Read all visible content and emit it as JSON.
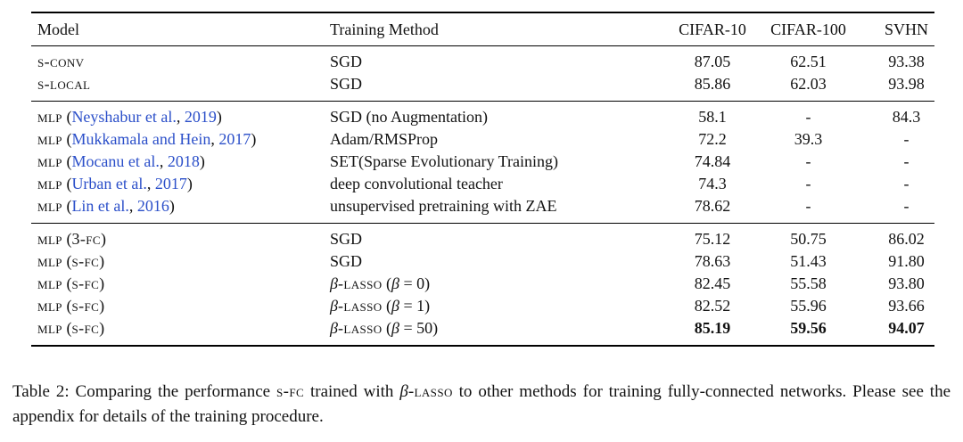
{
  "colors": {
    "link": "#2b4fc9",
    "text": "#121212",
    "rule": "#000000"
  },
  "table": {
    "headers": [
      "Model",
      "Training Method",
      "CIFAR-10",
      "CIFAR-100",
      "SVHN"
    ],
    "sections": [
      {
        "rows": [
          {
            "model": [
              {
                "t": "s-conv",
                "sc": true
              }
            ],
            "method": [
              {
                "t": "SGD"
              }
            ],
            "values": [
              {
                "v": "87.05"
              },
              {
                "v": "62.51"
              },
              {
                "v": "93.38"
              }
            ]
          },
          {
            "model": [
              {
                "t": "s-local",
                "sc": true
              }
            ],
            "method": [
              {
                "t": "SGD"
              }
            ],
            "values": [
              {
                "v": "85.86"
              },
              {
                "v": "62.03"
              },
              {
                "v": "93.98"
              }
            ]
          }
        ]
      },
      {
        "rows": [
          {
            "model": [
              {
                "t": "mlp",
                "sc": true
              },
              {
                "t": " ("
              },
              {
                "t": "Neyshabur et al.",
                "link": true
              },
              {
                "t": ", "
              },
              {
                "t": "2019",
                "link": true
              },
              {
                "t": ")"
              }
            ],
            "method": [
              {
                "t": "SGD (no Augmentation)"
              }
            ],
            "values": [
              {
                "v": "58.1"
              },
              {
                "v": "-"
              },
              {
                "v": "84.3"
              }
            ]
          },
          {
            "model": [
              {
                "t": "mlp",
                "sc": true
              },
              {
                "t": " ("
              },
              {
                "t": "Mukkamala and Hein",
                "link": true
              },
              {
                "t": ", "
              },
              {
                "t": "2017",
                "link": true
              },
              {
                "t": ")"
              }
            ],
            "method": [
              {
                "t": "Adam/RMSProp"
              }
            ],
            "values": [
              {
                "v": "72.2"
              },
              {
                "v": "39.3"
              },
              {
                "v": "-"
              }
            ]
          },
          {
            "model": [
              {
                "t": "mlp",
                "sc": true
              },
              {
                "t": " ("
              },
              {
                "t": "Mocanu et al.",
                "link": true
              },
              {
                "t": ", "
              },
              {
                "t": "2018",
                "link": true
              },
              {
                "t": ")"
              }
            ],
            "method": [
              {
                "t": "SET(Sparse Evolutionary Training)"
              }
            ],
            "values": [
              {
                "v": "74.84"
              },
              {
                "v": "-"
              },
              {
                "v": "-"
              }
            ]
          },
          {
            "model": [
              {
                "t": "mlp",
                "sc": true
              },
              {
                "t": " ("
              },
              {
                "t": "Urban et al.",
                "link": true
              },
              {
                "t": ", "
              },
              {
                "t": "2017",
                "link": true
              },
              {
                "t": ")"
              }
            ],
            "method": [
              {
                "t": "deep convolutional teacher"
              }
            ],
            "values": [
              {
                "v": "74.3"
              },
              {
                "v": "-"
              },
              {
                "v": "-"
              }
            ]
          },
          {
            "model": [
              {
                "t": "mlp",
                "sc": true
              },
              {
                "t": " ("
              },
              {
                "t": "Lin et al.",
                "link": true
              },
              {
                "t": ", "
              },
              {
                "t": "2016",
                "link": true
              },
              {
                "t": ")"
              }
            ],
            "method": [
              {
                "t": "unsupervised pretraining with ZAE"
              }
            ],
            "values": [
              {
                "v": "78.62"
              },
              {
                "v": "-"
              },
              {
                "v": "-"
              }
            ]
          }
        ]
      },
      {
        "rows": [
          {
            "model": [
              {
                "t": "mlp",
                "sc": true
              },
              {
                "t": " ("
              },
              {
                "t": "3-fc",
                "sc": true
              },
              {
                "t": ")"
              }
            ],
            "method": [
              {
                "t": "SGD"
              }
            ],
            "values": [
              {
                "v": "75.12"
              },
              {
                "v": "50.75"
              },
              {
                "v": "86.02"
              }
            ]
          },
          {
            "model": [
              {
                "t": "mlp",
                "sc": true
              },
              {
                "t": " ("
              },
              {
                "t": "s-fc",
                "sc": true
              },
              {
                "t": ")"
              }
            ],
            "method": [
              {
                "t": "SGD"
              }
            ],
            "values": [
              {
                "v": "78.63"
              },
              {
                "v": "51.43"
              },
              {
                "v": "91.80"
              }
            ]
          },
          {
            "model": [
              {
                "t": "mlp",
                "sc": true
              },
              {
                "t": " ("
              },
              {
                "t": "s-fc",
                "sc": true
              },
              {
                "t": ")"
              }
            ],
            "method": [
              {
                "t": "β",
                "i": true
              },
              {
                "t": "-lasso",
                "sc": true
              },
              {
                "t": " ("
              },
              {
                "t": "β",
                "i": true
              },
              {
                "t": " = 0)"
              }
            ],
            "values": [
              {
                "v": "82.45"
              },
              {
                "v": "55.58"
              },
              {
                "v": "93.80"
              }
            ]
          },
          {
            "model": [
              {
                "t": "mlp",
                "sc": true
              },
              {
                "t": " ("
              },
              {
                "t": "s-fc",
                "sc": true
              },
              {
                "t": ")"
              }
            ],
            "method": [
              {
                "t": "β",
                "i": true
              },
              {
                "t": "-lasso",
                "sc": true
              },
              {
                "t": " ("
              },
              {
                "t": "β",
                "i": true
              },
              {
                "t": " = 1)"
              }
            ],
            "values": [
              {
                "v": "82.52"
              },
              {
                "v": "55.96"
              },
              {
                "v": "93.66"
              }
            ]
          },
          {
            "model": [
              {
                "t": "mlp",
                "sc": true
              },
              {
                "t": " ("
              },
              {
                "t": "s-fc",
                "sc": true
              },
              {
                "t": ")"
              }
            ],
            "method": [
              {
                "t": "β",
                "i": true
              },
              {
                "t": "-lasso",
                "sc": true
              },
              {
                "t": " ("
              },
              {
                "t": "β",
                "i": true
              },
              {
                "t": " = 50)"
              }
            ],
            "values": [
              {
                "v": "85.19",
                "b": true
              },
              {
                "v": "59.56",
                "b": true
              },
              {
                "v": "94.07",
                "b": true
              }
            ]
          }
        ]
      }
    ]
  },
  "caption": {
    "segments": [
      {
        "t": "Table 2:  Comparing the performance "
      },
      {
        "t": "s-fc",
        "sc": true
      },
      {
        "t": " trained with "
      },
      {
        "t": "β",
        "i": true
      },
      {
        "t": "-lasso",
        "sc": true
      },
      {
        "t": " to other methods for training fully-connected networks. Please see the appendix for details of the training procedure."
      }
    ]
  }
}
